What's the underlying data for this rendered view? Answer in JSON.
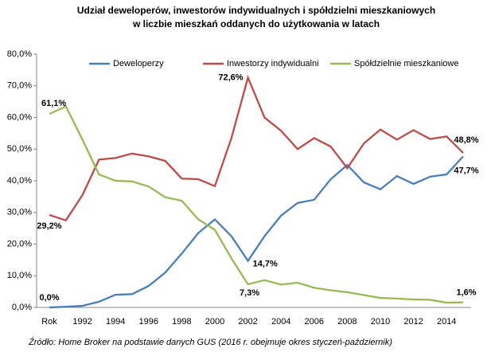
{
  "chart_data": {
    "type": "line",
    "title": [
      "Udział deweloperów, inwestorów indywidualnych i spółdzielni mieszkaniowych",
      "w liczbie mieszkań oddanych do użytkowania w latach"
    ],
    "categories": [
      "Rok",
      null,
      "1992",
      null,
      "1994",
      null,
      "1996",
      null,
      "1998",
      null,
      "2000",
      null,
      "2002",
      null,
      "2004",
      null,
      "2006",
      null,
      "2008",
      null,
      "2010",
      null,
      "2012",
      null,
      "2014",
      null
    ],
    "series": [
      {
        "name": "Deweloperzy",
        "color": "#4a7ebb",
        "values": [
          0.0,
          0.2,
          0.5,
          1.8,
          4.0,
          4.2,
          6.8,
          11,
          17,
          23.5,
          27.8,
          22.5,
          14.7,
          22.5,
          29,
          33,
          34,
          40.5,
          45,
          39.5,
          37.3,
          41.5,
          39,
          41.3,
          42,
          47.7
        ],
        "value_labels": [
          "0,0%",
          null,
          null,
          null,
          null,
          null,
          null,
          null,
          null,
          null,
          null,
          null,
          "14,7%",
          null,
          null,
          null,
          null,
          null,
          null,
          null,
          null,
          null,
          null,
          null,
          null,
          "47,7%"
        ]
      },
      {
        "name": "Inwestorzy indywidualni",
        "color": "#be4b48",
        "values": [
          29.2,
          27.5,
          35.5,
          46.7,
          47.2,
          48.6,
          47.7,
          46.3,
          40.7,
          40.5,
          38.3,
          53.5,
          72.6,
          60,
          55.8,
          50,
          53.5,
          50.8,
          44,
          51.8,
          56.2,
          53,
          56,
          53.2,
          54,
          48.8
        ],
        "value_labels": [
          "29,2%",
          null,
          null,
          null,
          null,
          null,
          null,
          null,
          null,
          null,
          null,
          null,
          "72,6%",
          null,
          null,
          null,
          null,
          null,
          null,
          null,
          null,
          null,
          null,
          null,
          null,
          "48,8%"
        ]
      },
      {
        "name": "Spółdzielnie mieszkaniowe",
        "color": "#98b954",
        "values": [
          61.1,
          63.5,
          53,
          42,
          40,
          39.8,
          38.2,
          34.8,
          33.7,
          27.8,
          24.5,
          15.5,
          7.3,
          8.6,
          7.2,
          7.8,
          6.2,
          5.4,
          4.8,
          3.9,
          3,
          2.8,
          2.5,
          2.4,
          1.5,
          1.6
        ],
        "value_labels": [
          "61,1%",
          null,
          null,
          null,
          null,
          null,
          null,
          null,
          null,
          null,
          null,
          null,
          "7,3%",
          null,
          null,
          null,
          null,
          null,
          null,
          null,
          null,
          null,
          null,
          null,
          null,
          "1,6%"
        ]
      }
    ],
    "ylim": [
      0,
      80
    ],
    "yticks": [
      {
        "value": 0,
        "label": "0,0%"
      },
      {
        "value": 10,
        "label": "10,0%"
      },
      {
        "value": 20,
        "label": "20,0%"
      },
      {
        "value": 30,
        "label": "30,0%"
      },
      {
        "value": 40,
        "label": "40,0%"
      },
      {
        "value": 50,
        "label": "50,0%"
      },
      {
        "value": 60,
        "label": "60,0%"
      },
      {
        "value": 70,
        "label": "70,0%"
      },
      {
        "value": 80,
        "label": "80,0%"
      }
    ],
    "grid": false,
    "legend": "top",
    "source": "Źródło: Home Broker na podstawie danych GUS (2016 r. obejmuje okres styczeń-październik)"
  }
}
